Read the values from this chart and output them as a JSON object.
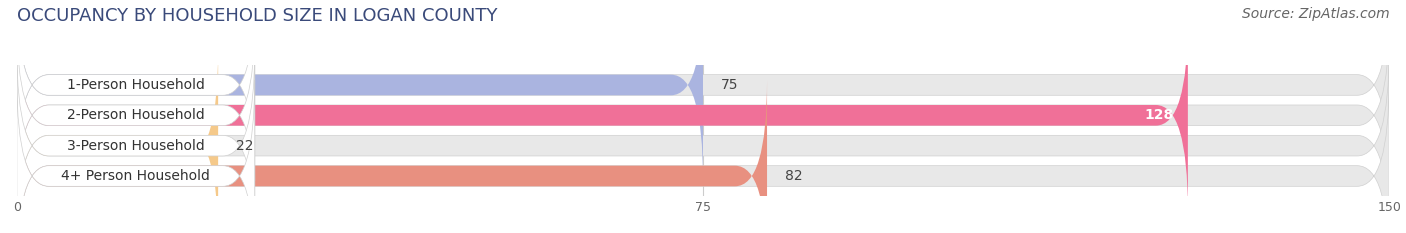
{
  "title": "OCCUPANCY BY HOUSEHOLD SIZE IN LOGAN COUNTY",
  "source": "Source: ZipAtlas.com",
  "categories": [
    "1-Person Household",
    "2-Person Household",
    "3-Person Household",
    "4+ Person Household"
  ],
  "values": [
    75,
    128,
    22,
    82
  ],
  "bar_colors": [
    "#aab4e0",
    "#f07098",
    "#f5c98a",
    "#e89080"
  ],
  "bar_bg_color": "#e8e8e8",
  "label_bg_color": "#ffffff",
  "xlim": [
    0,
    150
  ],
  "xticks": [
    0,
    75,
    150
  ],
  "title_fontsize": 13,
  "source_fontsize": 10,
  "label_fontsize": 10,
  "value_fontsize": 10,
  "background_color": "#ffffff",
  "bar_height": 0.68,
  "fig_width": 14.06,
  "fig_height": 2.33
}
